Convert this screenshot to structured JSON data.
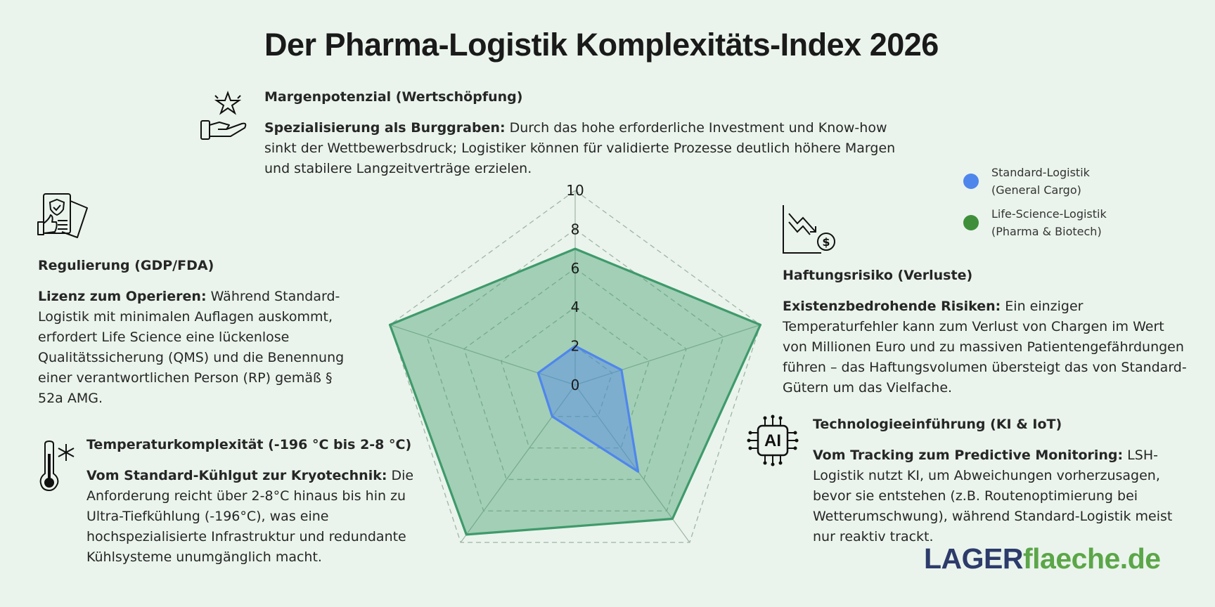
{
  "title": "Der Pharma-Logistik Komplexitäts-Index 2026",
  "sections": {
    "margin": {
      "heading": "Margenpotenzial (Wertschöpfung)",
      "lead": "Spezialisierung als Burggraben:",
      "text": " Durch das hohe erforderliche Investment und Know-how sinkt der Wettbewerbsdruck; Logistiker können für validierte Prozesse deutlich höhere Margen und stabilere Langzeitverträge erzielen.",
      "icon": "hand-star-icon"
    },
    "regulation": {
      "heading": "Regulierung (GDP/FDA)",
      "lead": "Lizenz zum Operieren:",
      "text": " Während Standard-Logistik mit minimalen Auflagen auskommt, erfordert Life Science eine lückenlose Qualitätssicherung (QMS) und die Benennung einer verantwortlichen Person (RP) gemäß § 52a AMG.",
      "icon": "certificate-document-icon"
    },
    "temperature": {
      "heading": "Temperaturkomplexität (-196 °C bis 2-8 °C)",
      "lead": "Vom Standard-Kühlgut zur Kryotechnik:",
      "text": " Die Anforderung reicht über 2-8°C hinaus bis hin zu Ultra-Tiefkühlung (-196°C), was eine hochspezialisierte Infrastruktur und redundante Kühlsysteme unumgänglich macht.",
      "icon": "thermometer-snowflake-icon"
    },
    "liability": {
      "heading": "Haftungsrisiko (Verluste)",
      "lead": "Existenzbedrohende Risiken:",
      "text": " Ein einziger Temperaturfehler kann zum Verlust von Chargen im Wert von Millionen Euro und zu massiven Patientengefährdungen führen – das Haftungsvolumen übersteigt das von Standard-Gütern um das Vielfache.",
      "icon": "chart-down-dollar-icon"
    },
    "technology": {
      "heading": "Technologieeinführung (KI & IoT)",
      "lead": "Vom Tracking zum Predictive Monitoring:",
      "text": " LSH-Logistik nutzt KI, um Abweichungen vorherzusagen, bevor sie entstehen (z.B. Routenoptimierung bei Wetterumschwung), während Standard-Logistik meist nur reaktiv trackt.",
      "icon": "ai-chip-icon",
      "icon_text": "AI"
    }
  },
  "legend": [
    {
      "line1": "Standard-Logistik",
      "line2": "(General Cargo)",
      "color": "#4f86ec"
    },
    {
      "line1": "Life-Science-Logistik",
      "line2": "(Pharma & Biotech)",
      "color": "#3f8f3a"
    }
  ],
  "brand": {
    "part1": "LAGER",
    "part2": "flaeche.de",
    "color1": "#2d3b6b",
    "color2": "#5ba648"
  },
  "chart_data": {
    "type": "radar",
    "axes": [
      "Margenpotenzial (Wertschöpfung)",
      "Haftungsrisiko (Verluste)",
      "Technologieeinführung (KI & IoT)",
      "Temperaturkomplexität (-196 °C bis 2-8 °C)",
      "Regulierung (GDP/FDA)"
    ],
    "rlim": [
      0,
      10
    ],
    "ticks": [
      "0",
      "2",
      "4",
      "6",
      "8",
      "10"
    ],
    "series": [
      {
        "name": "Standard-Logistik (General Cargo)",
        "values": [
          2.0,
          2.5,
          5.5,
          2.0,
          2.0
        ],
        "color": "#4f86ec"
      },
      {
        "name": "Life-Science-Logistik (Pharma & Biotech)",
        "values": [
          7.0,
          10.0,
          8.5,
          9.5,
          10.0
        ],
        "color": "#3f9a6b"
      }
    ]
  }
}
